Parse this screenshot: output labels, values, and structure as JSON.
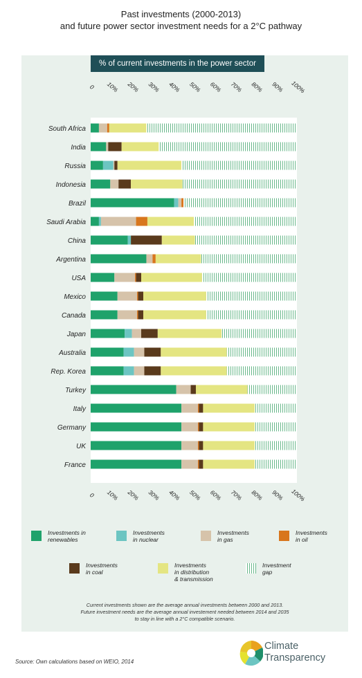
{
  "title_line1": "Past investments (2000-2013)",
  "title_line2": "and future power sector investment needs for a 2°C pathway",
  "unit_label": "% of current investments in the power sector",
  "footnote_line1": "Current investments shown are the average annual investments between 2000 and 2013.",
  "footnote_line2": "Future investment needs are the average annual investement needed between 2014 and 2035",
  "footnote_line3": "to stay in line with a 2°C compatible scenario.",
  "source": "Source: Own calculations based on WEIO, 2014",
  "logo_line1": "Climate",
  "logo_line2": "Transparency",
  "colors": {
    "renewables": "#1fa26b",
    "nuclear": "#6cc5c2",
    "gas": "#d6c3aa",
    "oil": "#d8761d",
    "coal": "#5a3a1c",
    "distribution": "#e4e582",
    "gap": "#58b07e"
  },
  "chart_data": {
    "type": "bar",
    "orientation": "horizontal",
    "stacked": true,
    "xlim": [
      0,
      100
    ],
    "x_ticks": [
      "0",
      "10%",
      "20%",
      "30%",
      "40%",
      "50%",
      "60%",
      "70%",
      "80%",
      "90%",
      "100%"
    ],
    "categories": [
      "South Africa",
      "India",
      "Russia",
      "Indonesia",
      "Brazil",
      "Saudi Arabia",
      "China",
      "Argentina",
      "USA",
      "Mexico",
      "Canada",
      "Japan",
      "Australia",
      "Rep. Korea",
      "Turkey",
      "Italy",
      "Germany",
      "UK",
      "France"
    ],
    "series": [
      {
        "name": "Investments in renewables",
        "key": "renewables",
        "values": [
          4,
          7.5,
          6,
          9.5,
          40.5,
          4,
          18,
          27,
          11.5,
          13,
          13,
          16.5,
          16,
          16,
          41.5,
          44,
          44,
          44,
          44
        ]
      },
      {
        "name": "Investments in nuclear",
        "key": "nuclear",
        "values": [
          0,
          0,
          5,
          0,
          2,
          1,
          1.5,
          0,
          0,
          0,
          0,
          3.5,
          5,
          5,
          0,
          0,
          0,
          0,
          0
        ]
      },
      {
        "name": "Investments in gas",
        "key": "gas",
        "values": [
          4,
          1,
          0.5,
          4,
          1.5,
          17,
          0,
          3,
          10,
          9.5,
          9.5,
          4.5,
          5,
          5,
          7,
          8,
          8,
          8,
          8
        ]
      },
      {
        "name": "Investments in oil",
        "key": "oil",
        "values": [
          1,
          0,
          0,
          0,
          1,
          5.5,
          0,
          1.5,
          0.5,
          0.5,
          0.5,
          0,
          0,
          0,
          0,
          0.5,
          0.5,
          0.5,
          0.5
        ]
      },
      {
        "name": "Investments in coal",
        "key": "coal",
        "values": [
          0,
          6.5,
          1.5,
          6,
          0,
          0,
          15,
          0,
          2.5,
          2.5,
          2.5,
          8,
          8,
          8,
          2.5,
          2,
          2,
          2,
          2
        ]
      },
      {
        "name": "Investments in distribution & transmission",
        "key": "distribution",
        "values": [
          18,
          18,
          31,
          25,
          0,
          22.5,
          16,
          22,
          29.5,
          30.5,
          30.5,
          31,
          32,
          32,
          25,
          25,
          25,
          25,
          25
        ]
      },
      {
        "name": "Investment gap",
        "key": "gap",
        "values": [
          73,
          67,
          56,
          55.5,
          55,
          50,
          49.5,
          46.5,
          46,
          44,
          44,
          36.5,
          34,
          34,
          24,
          20.5,
          20.5,
          20.5,
          20.5
        ]
      }
    ],
    "legend": [
      {
        "key": "renewables",
        "line1": "Investments in",
        "line2": "renewables",
        "line3": ""
      },
      {
        "key": "nuclear",
        "line1": "Investments",
        "line2": "in nuclear",
        "line3": ""
      },
      {
        "key": "gas",
        "line1": "Investments",
        "line2": "in gas",
        "line3": ""
      },
      {
        "key": "oil",
        "line1": "Investments",
        "line2": "in oil",
        "line3": ""
      },
      {
        "key": "coal",
        "line1": "Investments",
        "line2": "in coal",
        "line3": ""
      },
      {
        "key": "distribution",
        "line1": "Investments",
        "line2": "in distribution",
        "line3": "& transmission"
      },
      {
        "key": "gap",
        "line1": "Investment",
        "line2": "gap",
        "line3": ""
      }
    ],
    "legend_position": "bottom"
  }
}
